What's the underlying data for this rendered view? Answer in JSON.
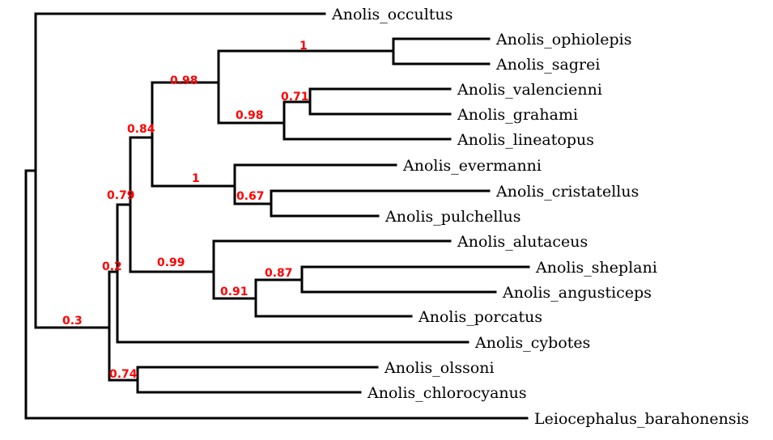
{
  "tree": {
    "colors": {
      "branch": "#000000",
      "support": "#ff0000"
    },
    "taxa": [
      "Anolis_occultus",
      "Anolis_ophiolepis",
      "Anolis_sagrei",
      "Anolis_valencienni",
      "Anolis_grahami",
      "Anolis_lineatopus",
      "Anolis_evermanni",
      "Anolis_cristatellus",
      "Anolis_pulchellus",
      "Anolis_alutaceus",
      "Anolis_sheplani",
      "Anolis_angusticeps",
      "Anolis_porcatus",
      "Anolis_cybotes",
      "Anolis_olssoni",
      "Anolis_chlorocyanus",
      "Leiocephalus_barahonensis"
    ],
    "supports": [
      "1",
      "0.98",
      "0.71",
      "0.98",
      "0.84",
      "1",
      "0.67",
      "0.79",
      "0.99",
      "0.87",
      "0.91",
      "0.2",
      "0.3",
      "0.74"
    ]
  }
}
